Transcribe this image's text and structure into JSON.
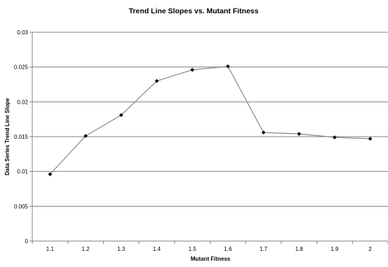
{
  "chart_data": {
    "type": "line",
    "title": "Trend Line Slopes vs. Mutant Fitness",
    "xlabel": "Mutant Fitness",
    "ylabel": "Data Series Trend Line Slope",
    "categories": [
      "1.1",
      "1.2",
      "1.3",
      "1.4",
      "1.5",
      "1.6",
      "1.7",
      "1.8",
      "1.9",
      "2"
    ],
    "series": [
      {
        "values": [
          0.0096,
          0.0151,
          0.0181,
          0.023,
          0.0246,
          0.0251,
          0.0156,
          0.0154,
          0.0149,
          0.0147
        ]
      }
    ],
    "y_ticks": [
      "0",
      "0.005",
      "0.01",
      "0.015",
      "0.02",
      "0.025",
      "0.03"
    ],
    "ylim": [
      0,
      0.03
    ],
    "grid": true,
    "legend": "none",
    "colors": {
      "line": "#888888",
      "marker": "#000000",
      "grid": "#808080",
      "axis": "#808080",
      "text": "#000000"
    }
  }
}
